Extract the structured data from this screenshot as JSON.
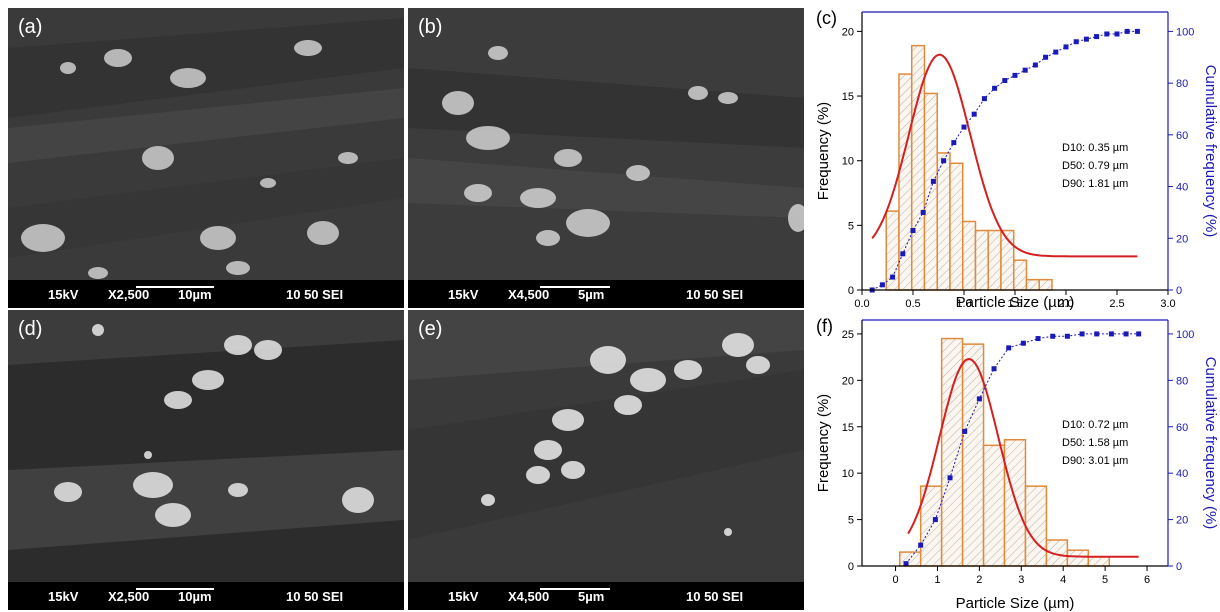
{
  "panels": [
    {
      "label": "(a)",
      "kv": "15kV",
      "mag": "X2,500",
      "scale": "10µm",
      "code": "10 50 SEI"
    },
    {
      "label": "(b)",
      "kv": "15kV",
      "mag": "X4,500",
      "scale": "5µm",
      "code": "10 50 SEI"
    },
    {
      "label": "(d)",
      "kv": "15kV",
      "mag": "X2,500",
      "scale": "10µm",
      "code": "10 50 SEI"
    },
    {
      "label": "(e)",
      "kv": "15kV",
      "mag": "X4,500",
      "scale": "5µm",
      "code": "10 50 SEI"
    }
  ],
  "chart_data": [
    {
      "type": "bar",
      "panel_label": "(c)",
      "xlabel": "Particle Size (µm)",
      "ylabel": "Frequency (%)",
      "y2label": "Cumulative frequency (%)",
      "xlim": [
        0,
        3.0
      ],
      "ylim": [
        0,
        21.5
      ],
      "y2lim": [
        0,
        107.5
      ],
      "xticks": [
        "0.0",
        "0.5",
        "1.0",
        "1.5",
        "2.0",
        "2.5",
        "3.0"
      ],
      "xtick_values": [
        0,
        0.5,
        1.0,
        1.5,
        2.0,
        2.5,
        3.0
      ],
      "yticks": [
        "0",
        "5",
        "10",
        "15",
        "20"
      ],
      "ytick_values": [
        0,
        5,
        10,
        15,
        20
      ],
      "y2ticks": [
        "0",
        "20",
        "40",
        "60",
        "80",
        "100"
      ],
      "y2tick_values": [
        0,
        20,
        40,
        60,
        80,
        100
      ],
      "bin_width": 0.125,
      "bars": {
        "x": [
          0.3,
          0.425,
          0.55,
          0.675,
          0.8,
          0.925,
          1.05,
          1.175,
          1.3,
          1.425,
          1.55,
          1.675,
          1.8,
          1.925,
          2.05,
          2.175,
          2.3,
          2.425,
          2.55
        ],
        "values": [
          0,
          6.1,
          16.7,
          18.9,
          15.2,
          10.6,
          9.8,
          0,
          5.3,
          4.6,
          4.6,
          4.6,
          2.3,
          0.8,
          0.8,
          0,
          0,
          0,
          0
        ]
      },
      "histogram": {
        "x": [
          0.3,
          0.425,
          0.55,
          0.675,
          0.8,
          0.925,
          1.05,
          1.175,
          1.3,
          1.425,
          1.55,
          1.675,
          1.8,
          1.925,
          2.05,
          2.175,
          2.3,
          2.425,
          2.55,
          2.675
        ],
        "values": [
          6.1,
          16.7,
          18.9,
          15.2,
          10.6,
          9.8,
          5.3,
          4.6,
          4.6,
          4.6,
          2.3,
          0.8,
          0.8,
          0,
          0,
          0,
          0,
          0,
          0,
          0
        ]
      },
      "cumulative": {
        "x": [
          0.1,
          0.2,
          0.3,
          0.4,
          0.5,
          0.6,
          0.7,
          0.8,
          0.9,
          1.0,
          1.1,
          1.2,
          1.3,
          1.4,
          1.5,
          1.6,
          1.7,
          1.8,
          1.9,
          2.0,
          2.1,
          2.2,
          2.3,
          2.4,
          2.5,
          2.6,
          2.7
        ],
        "values": [
          0,
          2,
          5,
          14,
          23,
          30,
          42,
          50,
          57,
          63,
          68,
          74,
          78,
          81,
          83,
          85,
          87,
          90,
          92,
          94,
          96,
          97,
          98,
          99,
          99,
          100,
          100
        ]
      },
      "fit": {
        "mu": 0.76,
        "sigma": 0.3,
        "peak": 18.2,
        "baseline": 2.6,
        "x_start": 0.1,
        "x_end": 2.7
      },
      "annotations": [
        "D10: 0.35 µm",
        "D50: 0.79 µm",
        "D90: 1.81 µm"
      ]
    },
    {
      "type": "bar",
      "panel_label": "(f)",
      "xlabel": "Particle Size (µm)",
      "ylabel": "Frequency (%)",
      "y2label": "Cumulative frequency (%)",
      "xlim": [
        -0.8,
        6.5
      ],
      "ylim": [
        0,
        26.5
      ],
      "y2lim": [
        0,
        106
      ],
      "xticks": [
        "0",
        "1",
        "2",
        "3",
        "4",
        "5",
        "6"
      ],
      "xtick_values": [
        0,
        1,
        2,
        3,
        4,
        5,
        6
      ],
      "yticks": [
        "0",
        "5",
        "10",
        "15",
        "20",
        "25"
      ],
      "ytick_values": [
        0,
        5,
        10,
        15,
        20,
        25
      ],
      "y2ticks": [
        "0",
        "20",
        "40",
        "60",
        "80",
        "100"
      ],
      "y2tick_values": [
        0,
        20,
        40,
        60,
        80,
        100
      ],
      "bin_width": 0.5,
      "histogram": {
        "x": [
          0.35,
          0.85,
          1.35,
          1.85,
          2.35,
          2.85,
          3.35,
          3.85,
          4.35,
          4.85,
          5.35,
          5.85
        ],
        "values": [
          1.5,
          8.6,
          24.5,
          23.9,
          13.0,
          13.6,
          8.6,
          2.8,
          1.7,
          1.0,
          0,
          0
        ]
      },
      "cumulative": {
        "x": [
          0.25,
          0.6,
          0.95,
          1.3,
          1.65,
          2.0,
          2.35,
          2.7,
          3.05,
          3.4,
          3.75,
          4.1,
          4.45,
          4.8,
          5.15,
          5.5,
          5.8
        ],
        "values": [
          1,
          9,
          20,
          38,
          58,
          72,
          85,
          94,
          96,
          98,
          99,
          99,
          100,
          100,
          100,
          100,
          100
        ]
      },
      "fit": {
        "mu": 1.75,
        "sigma": 0.7,
        "peak": 22.3,
        "baseline": 1.0,
        "x_start": 0.3,
        "x_end": 5.8
      },
      "annotations": [
        "D10:  0.72 µm",
        "D50:  1.58 µm",
        "D90:  3.01 µm"
      ]
    }
  ],
  "colors": {
    "bar_edge": "#e08a3c",
    "fit": "#d42020",
    "cumulative": "#1a1ab8",
    "axis_right": "#1a1ab8"
  }
}
